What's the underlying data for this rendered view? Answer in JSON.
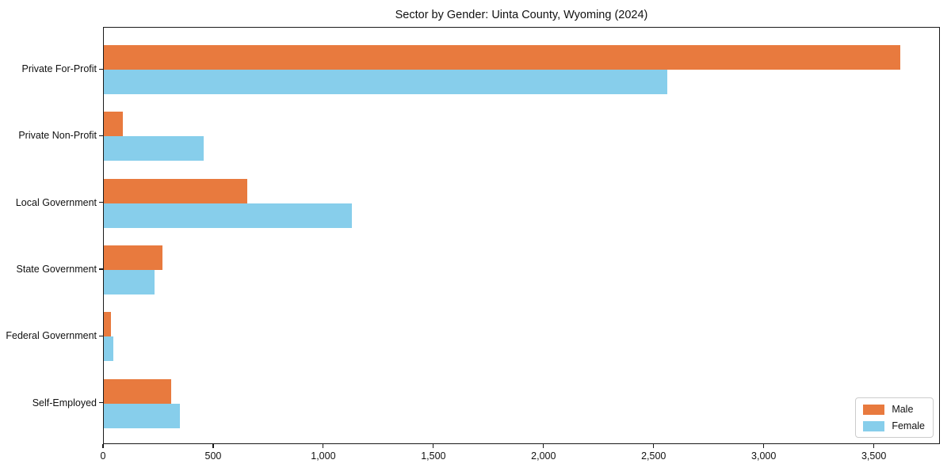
{
  "chart_data": {
    "type": "bar",
    "orientation": "horizontal",
    "title": "Sector by Gender: Uinta County, Wyoming (2024)",
    "categories": [
      "Private For-Profit",
      "Private Non-Profit",
      "Local Government",
      "State Government",
      "Federal Government",
      "Self-Employed"
    ],
    "series": [
      {
        "name": "Male",
        "color": "#E87A3E",
        "values": [
          3615,
          86,
          650,
          265,
          32,
          305
        ]
      },
      {
        "name": "Female",
        "color": "#87CEEB",
        "values": [
          2560,
          455,
          1125,
          230,
          42,
          345
        ]
      }
    ],
    "xlabel": "",
    "ylabel": "",
    "xlim": [
      0,
      3800
    ],
    "xticks": [
      0,
      500,
      1000,
      1500,
      2000,
      2500,
      3000,
      3500
    ],
    "xtick_labels": [
      "0",
      "500",
      "1,000",
      "1,500",
      "2,000",
      "2,500",
      "3,000",
      "3,500"
    ],
    "grid": false,
    "legend_position": "lower right"
  }
}
